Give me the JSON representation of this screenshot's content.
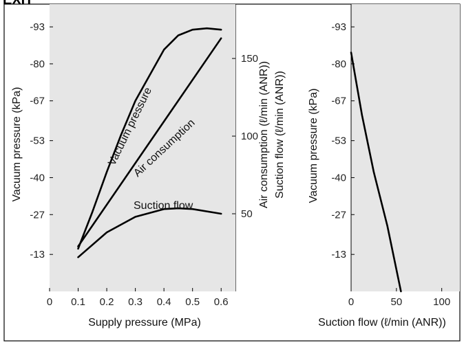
{
  "header": {
    "text": "EXH"
  },
  "colors": {
    "plot_bg": "#e6e6e6",
    "curve": "#000000",
    "frame": "#000000"
  },
  "chart_data": [
    {
      "type": "line",
      "title": "",
      "xlabel": "Supply pressure (MPa)",
      "ylabel": "Vacuum pressure (kPa)",
      "y2label": "Air consumption (ℓ/min (ANR)) Suction flow (ℓ/min (ANR))",
      "y2label_lines": [
        "Air consumption (ℓ/min (ANR))",
        "Suction flow (ℓ/min (ANR))"
      ],
      "xlim": [
        0,
        0.65
      ],
      "ylim": [
        0,
        -101
      ],
      "y2lim": [
        0,
        185
      ],
      "x_ticks": [
        "0",
        "0.1",
        "0.2",
        "0.3",
        "0.4",
        "0.5",
        "0.6"
      ],
      "y_ticks": [
        "-93",
        "-80",
        "-67",
        "-53",
        "-40",
        "-27",
        "-13"
      ],
      "y2_ticks": [
        "150",
        "100",
        "50"
      ],
      "grid": false,
      "legend": "none (curves labelled directly)",
      "series": [
        {
          "name": "Vacuum pressure",
          "axis": "left",
          "x": [
            0.1,
            0.15,
            0.2,
            0.25,
            0.3,
            0.35,
            0.4,
            0.45,
            0.5,
            0.55,
            0.6
          ],
          "y": [
            -15,
            -28,
            -42,
            -55,
            -67,
            -76,
            -85,
            -90,
            -92,
            -92.5,
            -92
          ]
        },
        {
          "name": "Air consumption",
          "axis": "right",
          "x": [
            0.1,
            0.6
          ],
          "y": [
            29,
            163
          ]
        },
        {
          "name": "Suction flow",
          "axis": "right",
          "x": [
            0.1,
            0.2,
            0.3,
            0.4,
            0.45,
            0.5,
            0.6
          ],
          "y": [
            22,
            38,
            48,
            53,
            53.5,
            53,
            50
          ]
        }
      ]
    },
    {
      "type": "line",
      "title": "",
      "xlabel": "Suction flow (ℓ/min (ANR))",
      "ylabel": "Vacuum pressure (kPa)",
      "xlim": [
        0,
        120
      ],
      "ylim": [
        0,
        -101
      ],
      "x_ticks": [
        "0",
        "50",
        "100"
      ],
      "y_ticks": [
        "-93",
        "-80",
        "-67",
        "-53",
        "-40",
        "-27",
        "-13"
      ],
      "grid": false,
      "legend": "none",
      "series": [
        {
          "name": "",
          "x": [
            0,
            12,
            25,
            40,
            55
          ],
          "y": [
            -84,
            -62,
            -42,
            -23,
            0
          ]
        }
      ]
    }
  ]
}
